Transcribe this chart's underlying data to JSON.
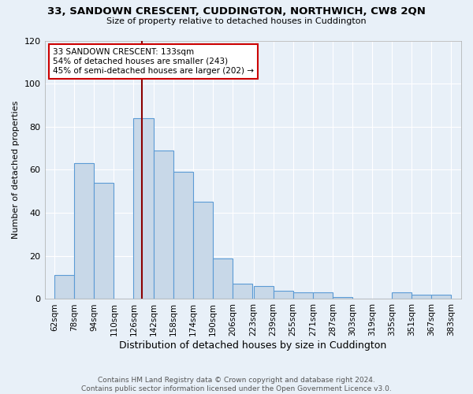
{
  "title1": "33, SANDOWN CRESCENT, CUDDINGTON, NORTHWICH, CW8 2QN",
  "title2": "Size of property relative to detached houses in Cuddington",
  "xlabel": "Distribution of detached houses by size in Cuddington",
  "ylabel": "Number of detached properties",
  "footer1": "Contains HM Land Registry data © Crown copyright and database right 2024.",
  "footer2": "Contains public sector information licensed under the Open Government Licence v3.0.",
  "annotation_line1": "33 SANDOWN CRESCENT: 133sqm",
  "annotation_line2": "54% of detached houses are smaller (243)",
  "annotation_line3": "45% of semi-detached houses are larger (202) →",
  "property_size": 133,
  "bins": [
    62,
    78,
    94,
    110,
    126,
    142,
    158,
    174,
    190,
    206,
    223,
    239,
    255,
    271,
    287,
    303,
    319,
    335,
    351,
    367,
    383
  ],
  "counts": [
    11,
    63,
    54,
    0,
    84,
    69,
    59,
    45,
    19,
    7,
    6,
    4,
    3,
    3,
    1,
    0,
    0,
    3,
    2,
    2
  ],
  "bar_face_color": "#c8d8e8",
  "bar_edge_color": "#5b9bd5",
  "vline_color": "#8b0000",
  "annotation_box_color": "#cc0000",
  "background_color": "#e8f0f8",
  "grid_color": "#ffffff",
  "ylim": [
    0,
    120
  ],
  "yticks": [
    0,
    20,
    40,
    60,
    80,
    100,
    120
  ]
}
